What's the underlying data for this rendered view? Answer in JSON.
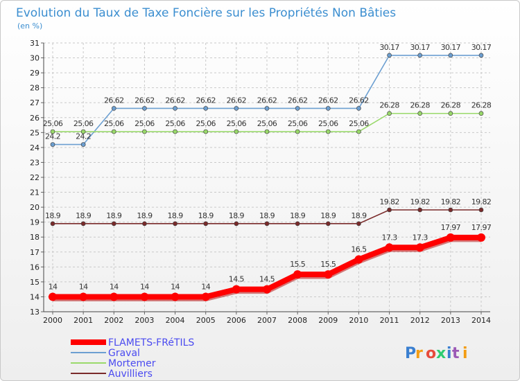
{
  "chart_data": {
    "type": "line",
    "title": "Evolution du Taux de Taxe Foncière sur les Propriétés Non Bâties",
    "unit_label": "(en %)",
    "x": [
      "2000",
      "2001",
      "2002",
      "2003",
      "2004",
      "2005",
      "2006",
      "2007",
      "2008",
      "2009",
      "2010",
      "2011",
      "2012",
      "2013",
      "2014"
    ],
    "ylim": [
      13,
      31
    ],
    "yticks": [
      "13",
      "14",
      "15",
      "16",
      "17",
      "18",
      "19",
      "20",
      "21",
      "22",
      "23",
      "24",
      "25",
      "26",
      "27",
      "28",
      "29",
      "30",
      "31"
    ],
    "grid": "horizontal and vertical dashed",
    "legend_position": "bottom-left",
    "series": [
      {
        "name": "FLAMETS-FRéTILS",
        "color": "#ff0000",
        "bold": true,
        "values": [
          14,
          14,
          14,
          14,
          14,
          14,
          14.5,
          14.5,
          15.5,
          15.5,
          16.5,
          17.3,
          17.3,
          17.97,
          17.97
        ],
        "labels": [
          "14",
          "14",
          "14",
          "14",
          "14",
          "14",
          "14.5",
          "14.5",
          "15.5",
          "15.5",
          "16.5",
          "17.3",
          "17.3",
          "17.97",
          "17.97"
        ]
      },
      {
        "name": "Graval",
        "color": "#6c9fd1",
        "bold": false,
        "values": [
          24.2,
          24.2,
          26.62,
          26.62,
          26.62,
          26.62,
          26.62,
          26.62,
          26.62,
          26.62,
          26.62,
          30.17,
          30.17,
          30.17,
          30.17
        ],
        "labels": [
          "24.2",
          "24.2",
          "26.62",
          "26.62",
          "26.62",
          "26.62",
          "26.62",
          "26.62",
          "26.62",
          "26.62",
          "26.62",
          "30.17",
          "30.17",
          "30.17",
          "30.17"
        ]
      },
      {
        "name": "Mortemer",
        "color": "#99d96a",
        "bold": false,
        "values": [
          25.06,
          25.06,
          25.06,
          25.06,
          25.06,
          25.06,
          25.06,
          25.06,
          25.06,
          25.06,
          25.06,
          26.28,
          26.28,
          26.28,
          26.28
        ],
        "labels": [
          "25.06",
          "25.06",
          "25.06",
          "25.06",
          "25.06",
          "25.06",
          "25.06",
          "25.06",
          "25.06",
          "25.06",
          "25.06",
          "26.28",
          "26.28",
          "26.28",
          "26.28"
        ]
      },
      {
        "name": "Auvilliers",
        "color": "#7a2a2a",
        "bold": false,
        "values": [
          18.9,
          18.9,
          18.9,
          18.9,
          18.9,
          18.9,
          18.9,
          18.9,
          18.9,
          18.9,
          18.9,
          19.82,
          19.82,
          19.82,
          19.82
        ],
        "labels": [
          "18.9",
          "18.9",
          "18.9",
          "18.9",
          "18.9",
          "18.9",
          "18.9",
          "18.9",
          "18.9",
          "18.9",
          "18.9",
          "19.82",
          "19.82",
          "19.82",
          "19.82"
        ]
      }
    ]
  },
  "brand": {
    "logo_text": "Proxiti",
    "letter_colors": [
      "#3a7fd0",
      "#f39c12",
      "#e74c3c",
      "#2ecc71",
      "#3a7fd0",
      "#9b59b6",
      "#f39c12"
    ]
  }
}
